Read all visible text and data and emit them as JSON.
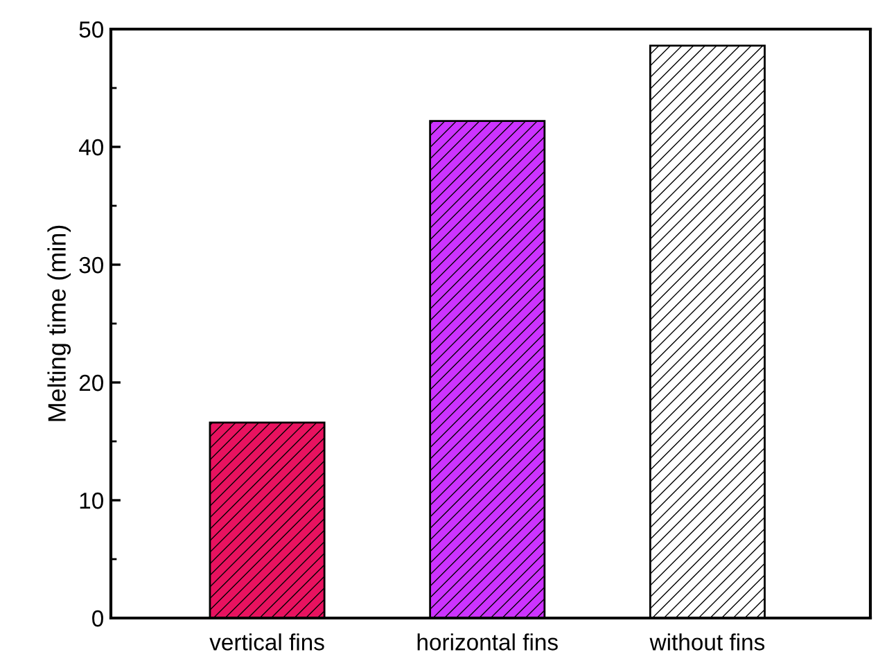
{
  "chart_data": {
    "type": "bar",
    "ylabel": "Melting time (min)",
    "categories": [
      "vertical fins",
      "horizontal fins",
      "without fins"
    ],
    "values": [
      16.6,
      42.2,
      48.6
    ],
    "colors": [
      "#e8125f",
      "#cc33ff",
      "#ffffff"
    ],
    "ylim": [
      0,
      50
    ],
    "yticks": [
      0,
      10,
      20,
      30,
      40,
      50
    ],
    "grid": false,
    "legend": false
  }
}
